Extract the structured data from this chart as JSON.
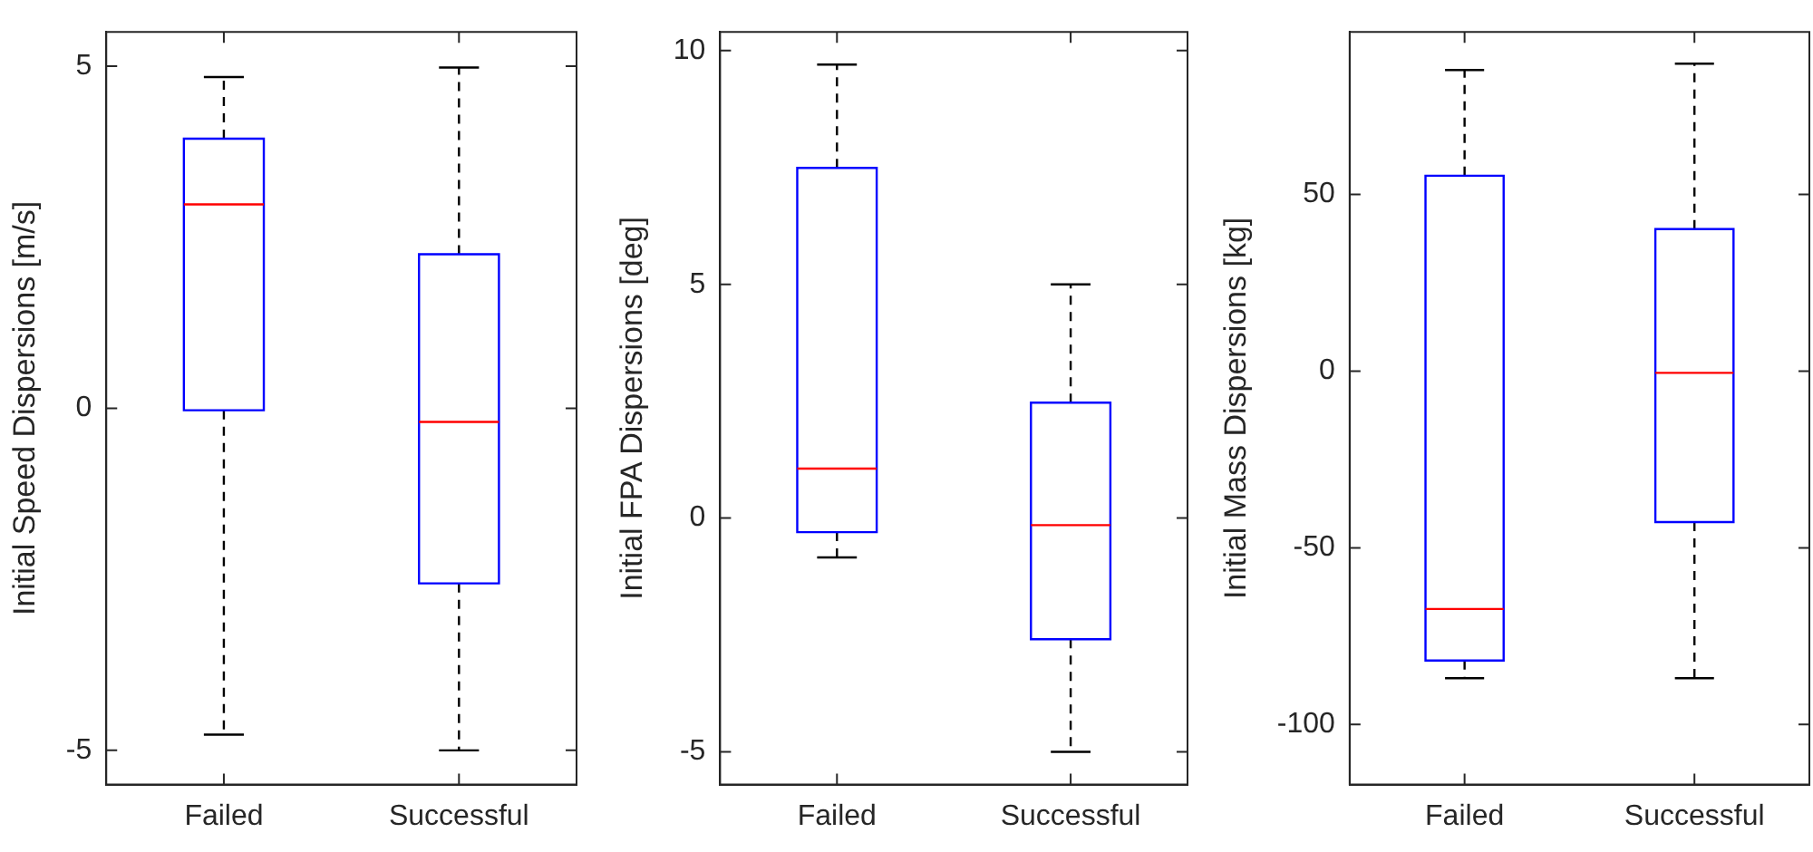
{
  "chart_data": [
    {
      "type": "box",
      "ylabel": "Initial Speed Dispersions [m/s]",
      "categories": [
        "Failed",
        "Successful"
      ],
      "ylim": [
        -5.5,
        5.5
      ],
      "yticks": [
        -5,
        0,
        5
      ],
      "grid": false,
      "series": [
        {
          "color": "#0000ff",
          "boxes": [
            {
              "low": -4.77,
              "q1": -0.03,
              "median": 2.98,
              "q3": 3.94,
              "high": 4.84
            },
            {
              "low": -5.0,
              "q1": -2.56,
              "median": -0.2,
              "q3": 2.25,
              "high": 4.98
            }
          ]
        }
      ]
    },
    {
      "type": "box",
      "ylabel": "Initial FPA Dispersions [deg]",
      "categories": [
        "Failed",
        "Successful"
      ],
      "ylim": [
        -5.7,
        10.4
      ],
      "yticks": [
        -5,
        0,
        5,
        10
      ],
      "grid": false,
      "series": [
        {
          "color": "#0000ff",
          "boxes": [
            {
              "low": -0.84,
              "q1": -0.3,
              "median": 1.06,
              "q3": 7.49,
              "high": 9.7
            },
            {
              "low": -5.0,
              "q1": -2.59,
              "median": -0.15,
              "q3": 2.47,
              "high": 5.0
            }
          ]
        }
      ]
    },
    {
      "type": "box",
      "ylabel": "Initial Mass Dispersions [kg]",
      "categories": [
        "Failed",
        "Successful"
      ],
      "ylim": [
        -117,
        96
      ],
      "yticks": [
        -100,
        -50,
        0,
        50
      ],
      "grid": false,
      "series": [
        {
          "color": "#0000ff",
          "boxes": [
            {
              "low": -86.9,
              "q1": -81.9,
              "median": -67.3,
              "q3": 55.3,
              "high": 85.2
            },
            {
              "low": -86.9,
              "q1": -42.7,
              "median": -0.5,
              "q3": 40.2,
              "high": 87
            }
          ]
        }
      ]
    }
  ]
}
